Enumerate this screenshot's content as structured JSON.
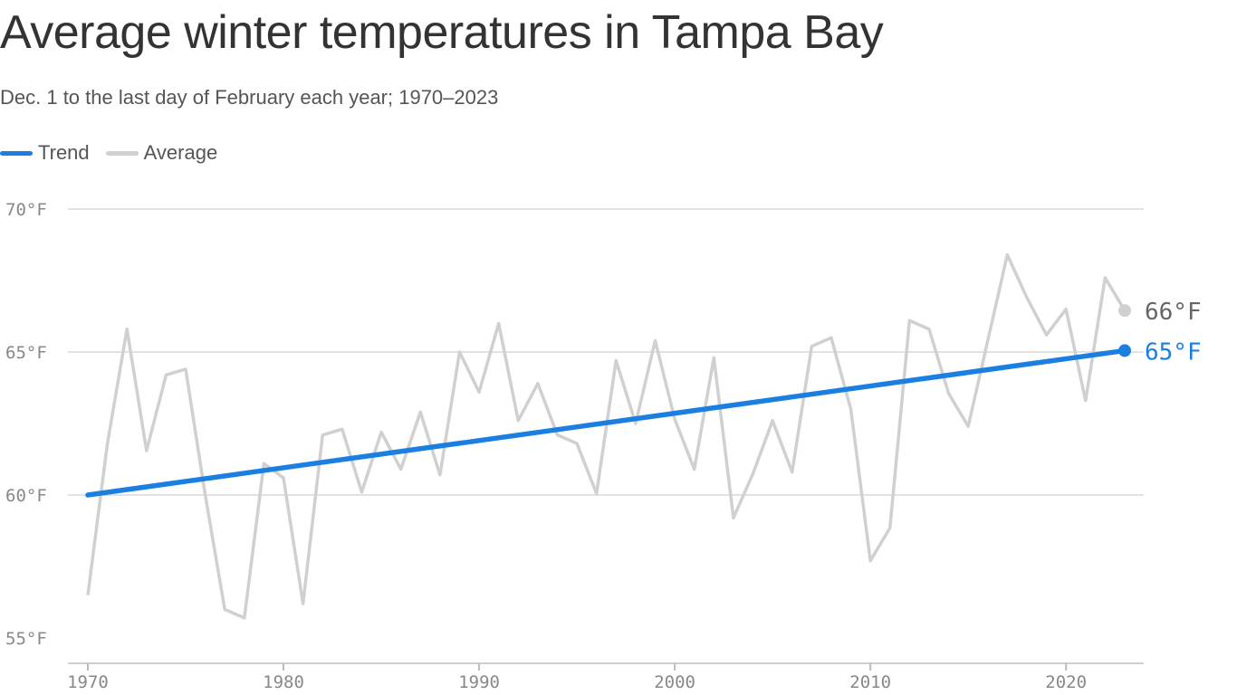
{
  "chart_data": {
    "type": "line",
    "title": "Average winter temperatures in Tampa Bay",
    "subtitle": "Dec. 1 to the last day of February each year; 1970–2023",
    "xlim": [
      1970,
      2023
    ],
    "ylim": [
      55,
      70
    ],
    "yticks": [
      55,
      60,
      65,
      70
    ],
    "ytick_labels": [
      "55°F",
      "60°F",
      "65°F",
      "70°F"
    ],
    "xticks": [
      1970,
      1980,
      1990,
      2000,
      2010,
      2020
    ],
    "xtick_labels": [
      "1970",
      "1980",
      "1990",
      "2000",
      "2010",
      "2020"
    ],
    "grid": true,
    "legend_placement": "top-left",
    "x": [
      1970,
      1971,
      1972,
      1973,
      1974,
      1975,
      1976,
      1977,
      1978,
      1979,
      1980,
      1981,
      1982,
      1983,
      1984,
      1985,
      1986,
      1987,
      1988,
      1989,
      1990,
      1991,
      1992,
      1993,
      1994,
      1995,
      1996,
      1997,
      1998,
      1999,
      2000,
      2001,
      2002,
      2003,
      2004,
      2005,
      2006,
      2007,
      2008,
      2009,
      2010,
      2011,
      2012,
      2013,
      2014,
      2015,
      2016,
      2017,
      2018,
      2019,
      2020,
      2021,
      2022,
      2023
    ],
    "series": [
      {
        "name": "Trend",
        "color": "#1a7fe0",
        "type": "linear-trend",
        "start": [
          1970,
          60.0
        ],
        "end": [
          2023,
          65.05
        ],
        "end_label": "65°F"
      },
      {
        "name": "Average",
        "color": "#d0d0d0",
        "end_label": "66°F",
        "values": [
          56.5,
          61.8,
          65.8,
          61.55,
          64.2,
          64.4,
          60.0,
          56.0,
          55.7,
          61.1,
          60.6,
          56.2,
          62.1,
          62.3,
          60.1,
          62.2,
          60.9,
          62.9,
          60.7,
          65.0,
          63.6,
          66.0,
          62.6,
          63.9,
          62.1,
          61.8,
          60.05,
          64.7,
          62.5,
          65.4,
          62.65,
          60.9,
          64.8,
          59.2,
          60.75,
          62.6,
          60.8,
          65.2,
          65.5,
          63.0,
          57.7,
          58.85,
          66.1,
          65.8,
          63.55,
          62.4,
          65.4,
          68.4,
          66.9,
          65.6,
          66.5,
          63.3,
          67.6,
          66.45
        ]
      }
    ]
  }
}
